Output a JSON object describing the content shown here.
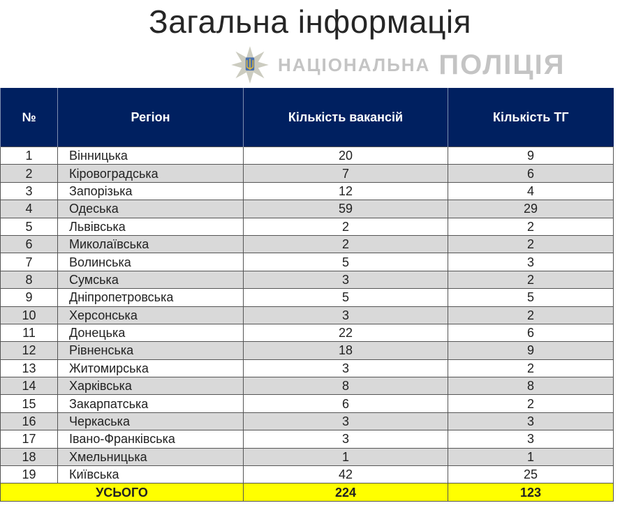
{
  "title": "Загальна інформація",
  "table": {
    "headers": [
      "№",
      "Регіон",
      "Кількість вакансій",
      "Кількість ТГ"
    ],
    "rows": [
      [
        "1",
        "Вінницька",
        "20",
        "9"
      ],
      [
        "2",
        "Кіровоградська",
        "7",
        "6"
      ],
      [
        "3",
        "Запорізька",
        "12",
        "4"
      ],
      [
        "4",
        "Одеська",
        "59",
        "29"
      ],
      [
        "5",
        "Львівська",
        "2",
        "2"
      ],
      [
        "6",
        "Миколаївська",
        "2",
        "2"
      ],
      [
        "7",
        "Волинська",
        "5",
        "3"
      ],
      [
        "8",
        "Сумська",
        "3",
        "2"
      ],
      [
        "9",
        "Дніпропетровська",
        "5",
        "5"
      ],
      [
        "10",
        "Херсонська",
        "3",
        "2"
      ],
      [
        "11",
        "Донецька",
        "22",
        "6"
      ],
      [
        "12",
        "Рівненська",
        "18",
        "9"
      ],
      [
        "13",
        "Житомирська",
        "3",
        "2"
      ],
      [
        "14",
        "Харківська",
        "8",
        "8"
      ],
      [
        "15",
        "Закарпатська",
        "6",
        "2"
      ],
      [
        "16",
        "Черкаська",
        "3",
        "3"
      ],
      [
        "17",
        "Івано-Франківська",
        "3",
        "3"
      ],
      [
        "18",
        "Хмельницька",
        "1",
        "1"
      ],
      [
        "19",
        "Київська",
        "42",
        "25"
      ]
    ],
    "total": {
      "label": "УСЬОГО",
      "vacancies": "224",
      "communities": "123"
    }
  },
  "watermark": {
    "line1": "НАЦІОНАЛЬНА",
    "line2": "ПОЛІЦІЯ",
    "icon": "police-star-emblem-icon"
  },
  "colors": {
    "header_bg": "#002060",
    "total_bg": "#ffff00",
    "alt_row": "#d9d9d9"
  }
}
